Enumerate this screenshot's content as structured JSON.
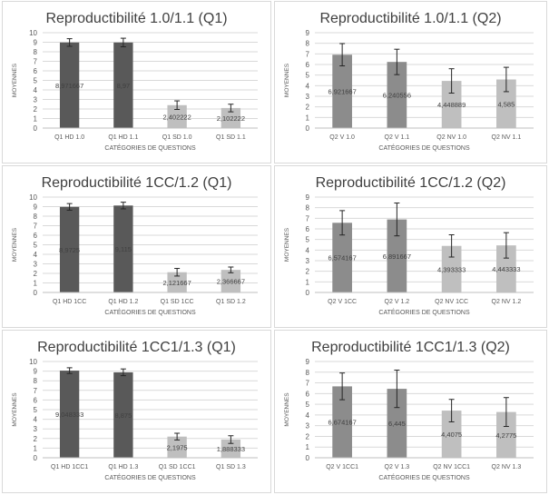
{
  "chart_data": [
    {
      "type": "bar",
      "title": "Reproductibilité 1.0/1.1 (Q1)",
      "xlabel": "CATÉGORIES DE QUESTIONS",
      "ylabel": "MOYENNES",
      "ylim": [
        0,
        10
      ],
      "yticks": [
        0,
        1,
        2,
        3,
        4,
        5,
        6,
        7,
        8,
        9,
        10
      ],
      "grid": true,
      "categories": [
        "Q1 HD 1.0",
        "Q1 HD 1.1",
        "Q1 SD 1.0",
        "Q1 SD 1.1"
      ],
      "values": [
        8.971667,
        8.97,
        2.402222,
        2.102222
      ],
      "value_labels": [
        "8,971667",
        "8,97",
        "2,402222",
        "2,102222"
      ],
      "errors": [
        0.4,
        0.45,
        0.45,
        0.4
      ],
      "bar_colors": [
        "#595959",
        "#595959",
        "#bfbfbf",
        "#bfbfbf"
      ]
    },
    {
      "type": "bar",
      "title": "Reproductibilité 1.0/1.1 (Q2)",
      "xlabel": "CATÉGORIES DE QUESTIONS",
      "ylabel": "MOYENNES",
      "ylim": [
        0,
        9
      ],
      "yticks": [
        0,
        1,
        2,
        3,
        4,
        5,
        6,
        7,
        8,
        9
      ],
      "grid": true,
      "categories": [
        "Q2 V 1.0",
        "Q2 V 1.1",
        "Q2 NV 1.0",
        "Q2 NV 1.1"
      ],
      "values": [
        6.921667,
        6.240556,
        4.448889,
        4.585
      ],
      "value_labels": [
        "6,921667",
        "6,240556",
        "4,448889",
        "4,585"
      ],
      "errors": [
        1.05,
        1.2,
        1.15,
        1.15
      ],
      "bar_colors": [
        "#8c8c8c",
        "#8c8c8c",
        "#bfbfbf",
        "#bfbfbf"
      ]
    },
    {
      "type": "bar",
      "title": "Reproductibilité 1CC/1.2 (Q1)",
      "xlabel": "CATÉGORIES DE QUESTIONS",
      "ylabel": "MOYENNES",
      "ylim": [
        0,
        10
      ],
      "yticks": [
        0,
        1,
        2,
        3,
        4,
        5,
        6,
        7,
        8,
        9,
        10
      ],
      "grid": true,
      "categories": [
        "Q1 HD 1CC",
        "Q1 HD 1.2",
        "Q1 SD 1CC",
        "Q1 SD 1.2"
      ],
      "values": [
        8.9725,
        9.115,
        2.121667,
        2.366667
      ],
      "value_labels": [
        "8,9725",
        "9,115",
        "2,121667",
        "2,366667"
      ],
      "errors": [
        0.35,
        0.35,
        0.4,
        0.3
      ],
      "bar_colors": [
        "#595959",
        "#595959",
        "#bfbfbf",
        "#bfbfbf"
      ]
    },
    {
      "type": "bar",
      "title": "Reproductibilité 1CC/1.2 (Q2)",
      "xlabel": "CATÉGORIES DE QUESTIONS",
      "ylabel": "MOYENNES",
      "ylim": [
        0,
        9
      ],
      "yticks": [
        0,
        1,
        2,
        3,
        4,
        5,
        6,
        7,
        8,
        9
      ],
      "grid": true,
      "categories": [
        "Q2 V 1CC",
        "Q2 V 1.2",
        "Q2 NV 1CC",
        "Q2 NV 1.2"
      ],
      "values": [
        6.574167,
        6.891667,
        4.393333,
        4.443333
      ],
      "value_labels": [
        "6,574167",
        "6,891667",
        "4,393333",
        "4,443333"
      ],
      "errors": [
        1.15,
        1.55,
        1.05,
        1.2
      ],
      "bar_colors": [
        "#8c8c8c",
        "#8c8c8c",
        "#bfbfbf",
        "#bfbfbf"
      ]
    },
    {
      "type": "bar",
      "title": "Reproductibilité 1CC1/1.3 (Q1)",
      "xlabel": "CATÉGORIES DE QUESTIONS",
      "ylabel": "MOYENNES",
      "ylim": [
        0,
        10
      ],
      "yticks": [
        0,
        1,
        2,
        3,
        4,
        5,
        6,
        7,
        8,
        9,
        10
      ],
      "grid": true,
      "categories": [
        "Q1 HD 1CC1",
        "Q1 HD 1.3",
        "Q1 SD 1CC1",
        "Q1 SD 1.3"
      ],
      "values": [
        9.048333,
        8.875,
        2.1975,
        1.888333
      ],
      "value_labels": [
        "9,048333",
        "8,875",
        "2,1975",
        "1,888333"
      ],
      "errors": [
        0.3,
        0.35,
        0.35,
        0.4
      ],
      "bar_colors": [
        "#595959",
        "#595959",
        "#bfbfbf",
        "#bfbfbf"
      ]
    },
    {
      "type": "bar",
      "title": "Reproductibilité 1CC1/1.3 (Q2)",
      "xlabel": "CATÉGORIES DE QUESTIONS",
      "ylabel": "MOYENNES",
      "ylim": [
        0,
        9
      ],
      "yticks": [
        0,
        1,
        2,
        3,
        4,
        5,
        6,
        7,
        8,
        9
      ],
      "grid": true,
      "categories": [
        "Q2 V 1CC1",
        "Q2 V 1.3",
        "Q2 NV 1CC1",
        "Q2 NV 1.3"
      ],
      "values": [
        6.674167,
        6.445,
        4.4075,
        4.2775
      ],
      "value_labels": [
        "6,674167",
        "6,445",
        "4,4075",
        "4,2775"
      ],
      "errors": [
        1.25,
        1.75,
        1.05,
        1.35
      ],
      "bar_colors": [
        "#8c8c8c",
        "#8c8c8c",
        "#bfbfbf",
        "#bfbfbf"
      ]
    }
  ]
}
